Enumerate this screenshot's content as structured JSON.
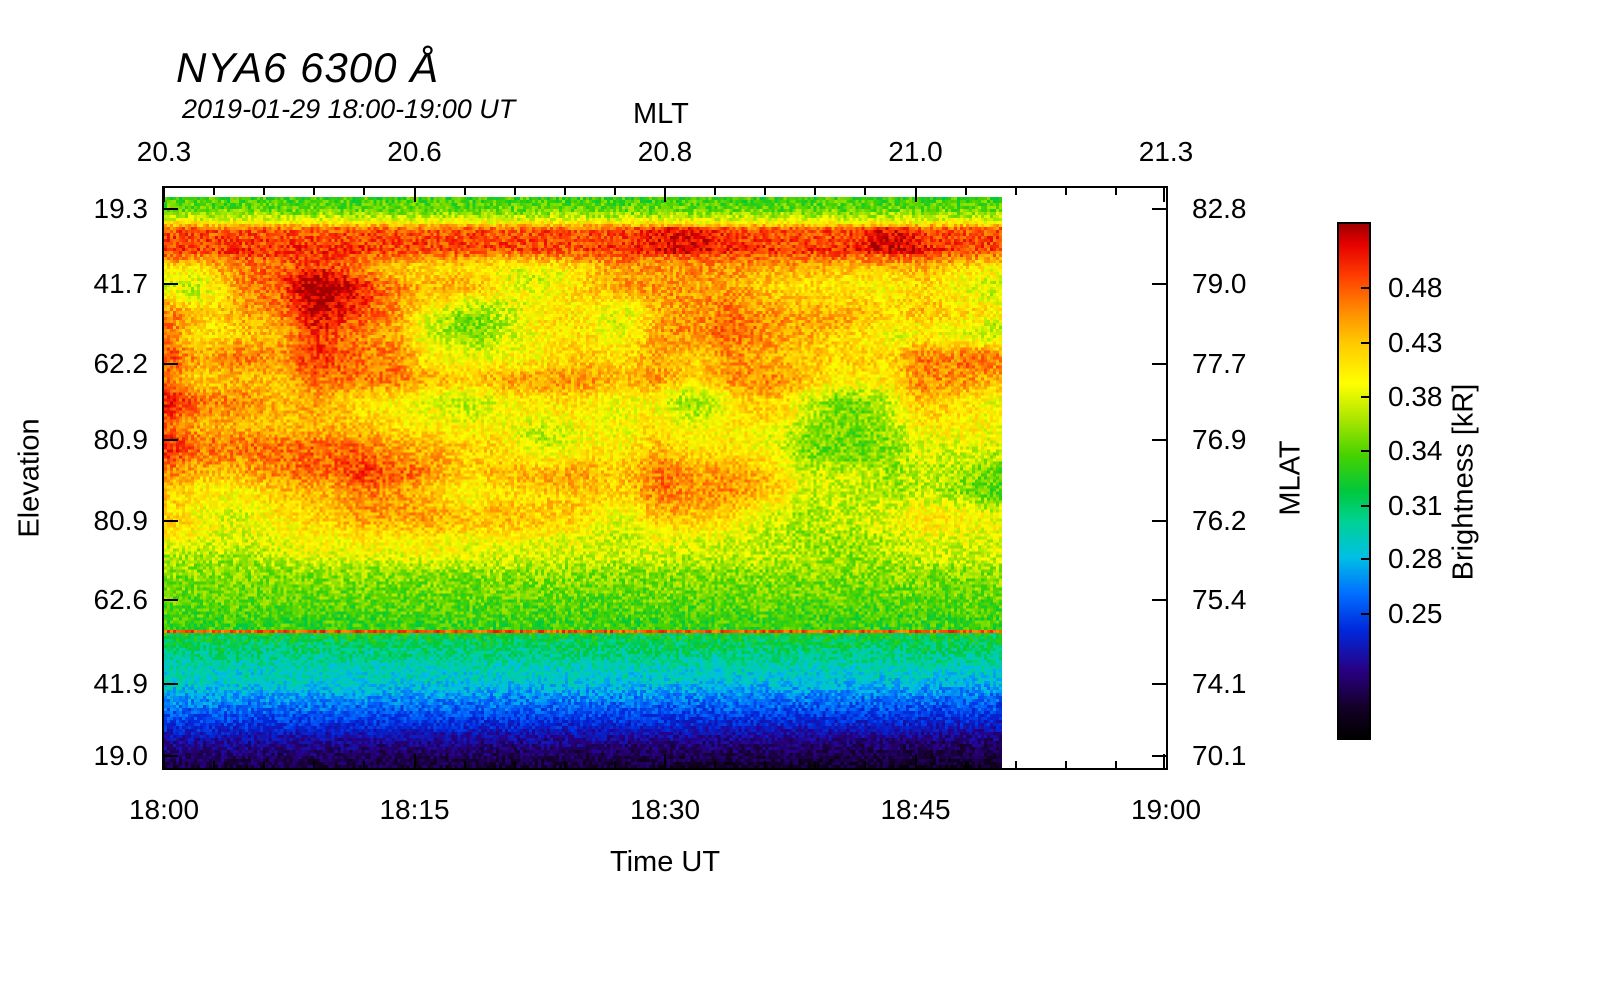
{
  "title": "NYA6 6300 Å",
  "subtitle": "2019-01-29 18:00-19:00 UT",
  "chart_data": {
    "type": "heatmap",
    "title": "NYA6 6300 Å",
    "subtitle": "2019-01-29 18:00-19:00 UT",
    "description": "Keogram of 630.0 nm brightness vs elevation and time. Bright red/orange emission fills upper-middle elevations (strongest 18:00-18:25), a narrow red band near the top, green band at the very top edge, a thin red line near the lower third, then cyan, blue and black toward the lowest elevations. Data ends near 18:50; remainder of axis is blank.",
    "x_axis_bottom": {
      "label": "Time UT",
      "ticks": [
        "18:00",
        "18:15",
        "18:30",
        "18:45",
        "19:00"
      ],
      "fractions": [
        0,
        0.25,
        0.5,
        0.75,
        1
      ]
    },
    "x_axis_top": {
      "label": "MLT",
      "ticks": [
        "20.3",
        "20.6",
        "20.8",
        "21.0",
        "21.3"
      ],
      "fractions": [
        0,
        0.25,
        0.5,
        0.75,
        1
      ]
    },
    "y_axis_left": {
      "label": "Elevation",
      "ticks": [
        "19.3",
        "41.7",
        "62.2",
        "80.9",
        "80.9",
        "62.6",
        "41.9",
        "19.0"
      ],
      "fractions": [
        0.036,
        0.166,
        0.303,
        0.435,
        0.574,
        0.711,
        0.856,
        0.979
      ]
    },
    "y_axis_right": {
      "label": "MLAT",
      "ticks": [
        "82.8",
        "79.0",
        "77.7",
        "76.9",
        "76.2",
        "75.4",
        "74.1",
        "70.1"
      ],
      "fractions": [
        0.036,
        0.166,
        0.303,
        0.435,
        0.574,
        0.711,
        0.856,
        0.979
      ]
    },
    "colorbar": {
      "label": "Brightness [kR]",
      "ticks": [
        "0.48",
        "0.43",
        "0.38",
        "0.34",
        "0.31",
        "0.28",
        "0.25"
      ],
      "fractions": [
        0.125,
        0.232,
        0.336,
        0.442,
        0.548,
        0.652,
        0.759
      ],
      "gradient": [
        {
          "pos": 0.0,
          "color": "#a00000"
        },
        {
          "pos": 0.04,
          "color": "#e60000"
        },
        {
          "pos": 0.1,
          "color": "#ff3c00"
        },
        {
          "pos": 0.17,
          "color": "#ff8c00"
        },
        {
          "pos": 0.23,
          "color": "#ffc800"
        },
        {
          "pos": 0.31,
          "color": "#ffff00"
        },
        {
          "pos": 0.38,
          "color": "#aae600"
        },
        {
          "pos": 0.45,
          "color": "#46d200"
        },
        {
          "pos": 0.52,
          "color": "#00c83c"
        },
        {
          "pos": 0.58,
          "color": "#00d296"
        },
        {
          "pos": 0.65,
          "color": "#00bee6"
        },
        {
          "pos": 0.72,
          "color": "#006eff"
        },
        {
          "pos": 0.79,
          "color": "#0028dc"
        },
        {
          "pos": 0.87,
          "color": "#280082"
        },
        {
          "pos": 0.94,
          "color": "#140028"
        },
        {
          "pos": 1.0,
          "color": "#000000"
        }
      ]
    },
    "data_extent": {
      "time_start": "18:00",
      "time_end_of_data": "18:50",
      "x_fraction_filled": 0.836
    },
    "axis_color": "#000000",
    "background_color": "#ffffff"
  }
}
